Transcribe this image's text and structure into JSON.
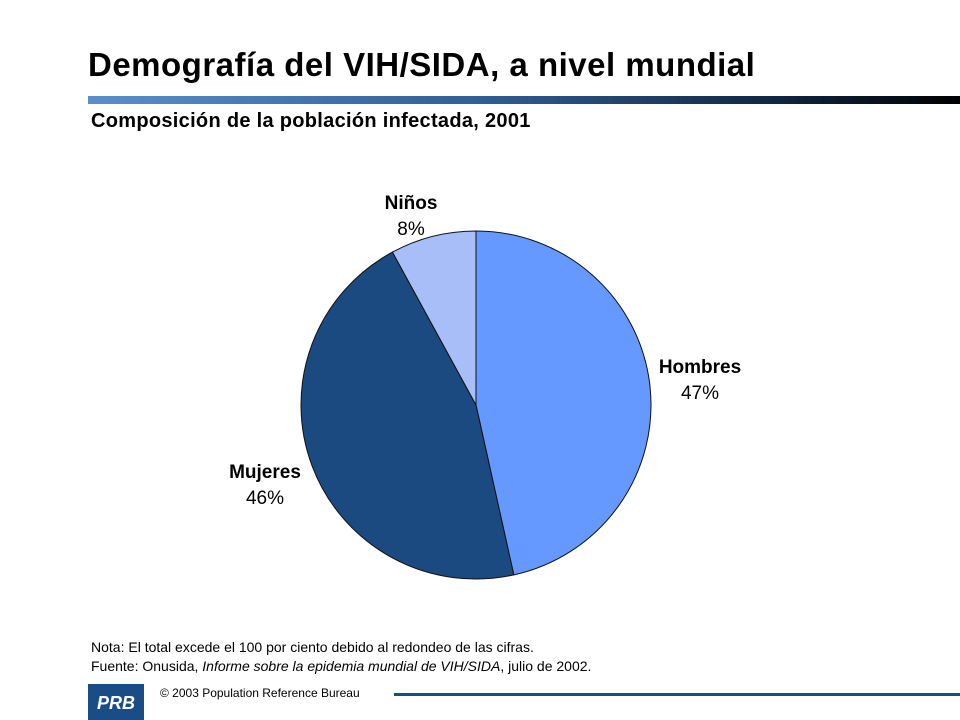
{
  "title": "Demografía del VIH/SIDA, a nivel mundial",
  "subtitle": "Composición de la población infectada, 2001",
  "chart_data": {
    "type": "pie",
    "slices": [
      {
        "label": "Hombres",
        "value": 47,
        "value_label": "47%",
        "color": "#6699ff"
      },
      {
        "label": "Mujeres",
        "value": 46,
        "value_label": "46%",
        "color": "#1b4a80"
      },
      {
        "label": "Niños",
        "value": 8,
        "value_label": "8%",
        "color": "#a8bef8"
      }
    ],
    "start": "12 o'clock",
    "direction": "clockwise",
    "legend": "none (labels beside slices)"
  },
  "notes": {
    "nota": "Nota: El total excede el 100 por ciento debido al redondeo de las cifras.",
    "fuente_prefix": "Fuente: Onusida, ",
    "fuente_italic": "Informe sobre la epidemia mundial de VIH/SIDA",
    "fuente_suffix": ", julio de 2002."
  },
  "footer": {
    "logo_text": "PRB",
    "copyright": "© 2003 Population Reference Bureau"
  },
  "colors": {
    "accent": "#1a4d85"
  }
}
